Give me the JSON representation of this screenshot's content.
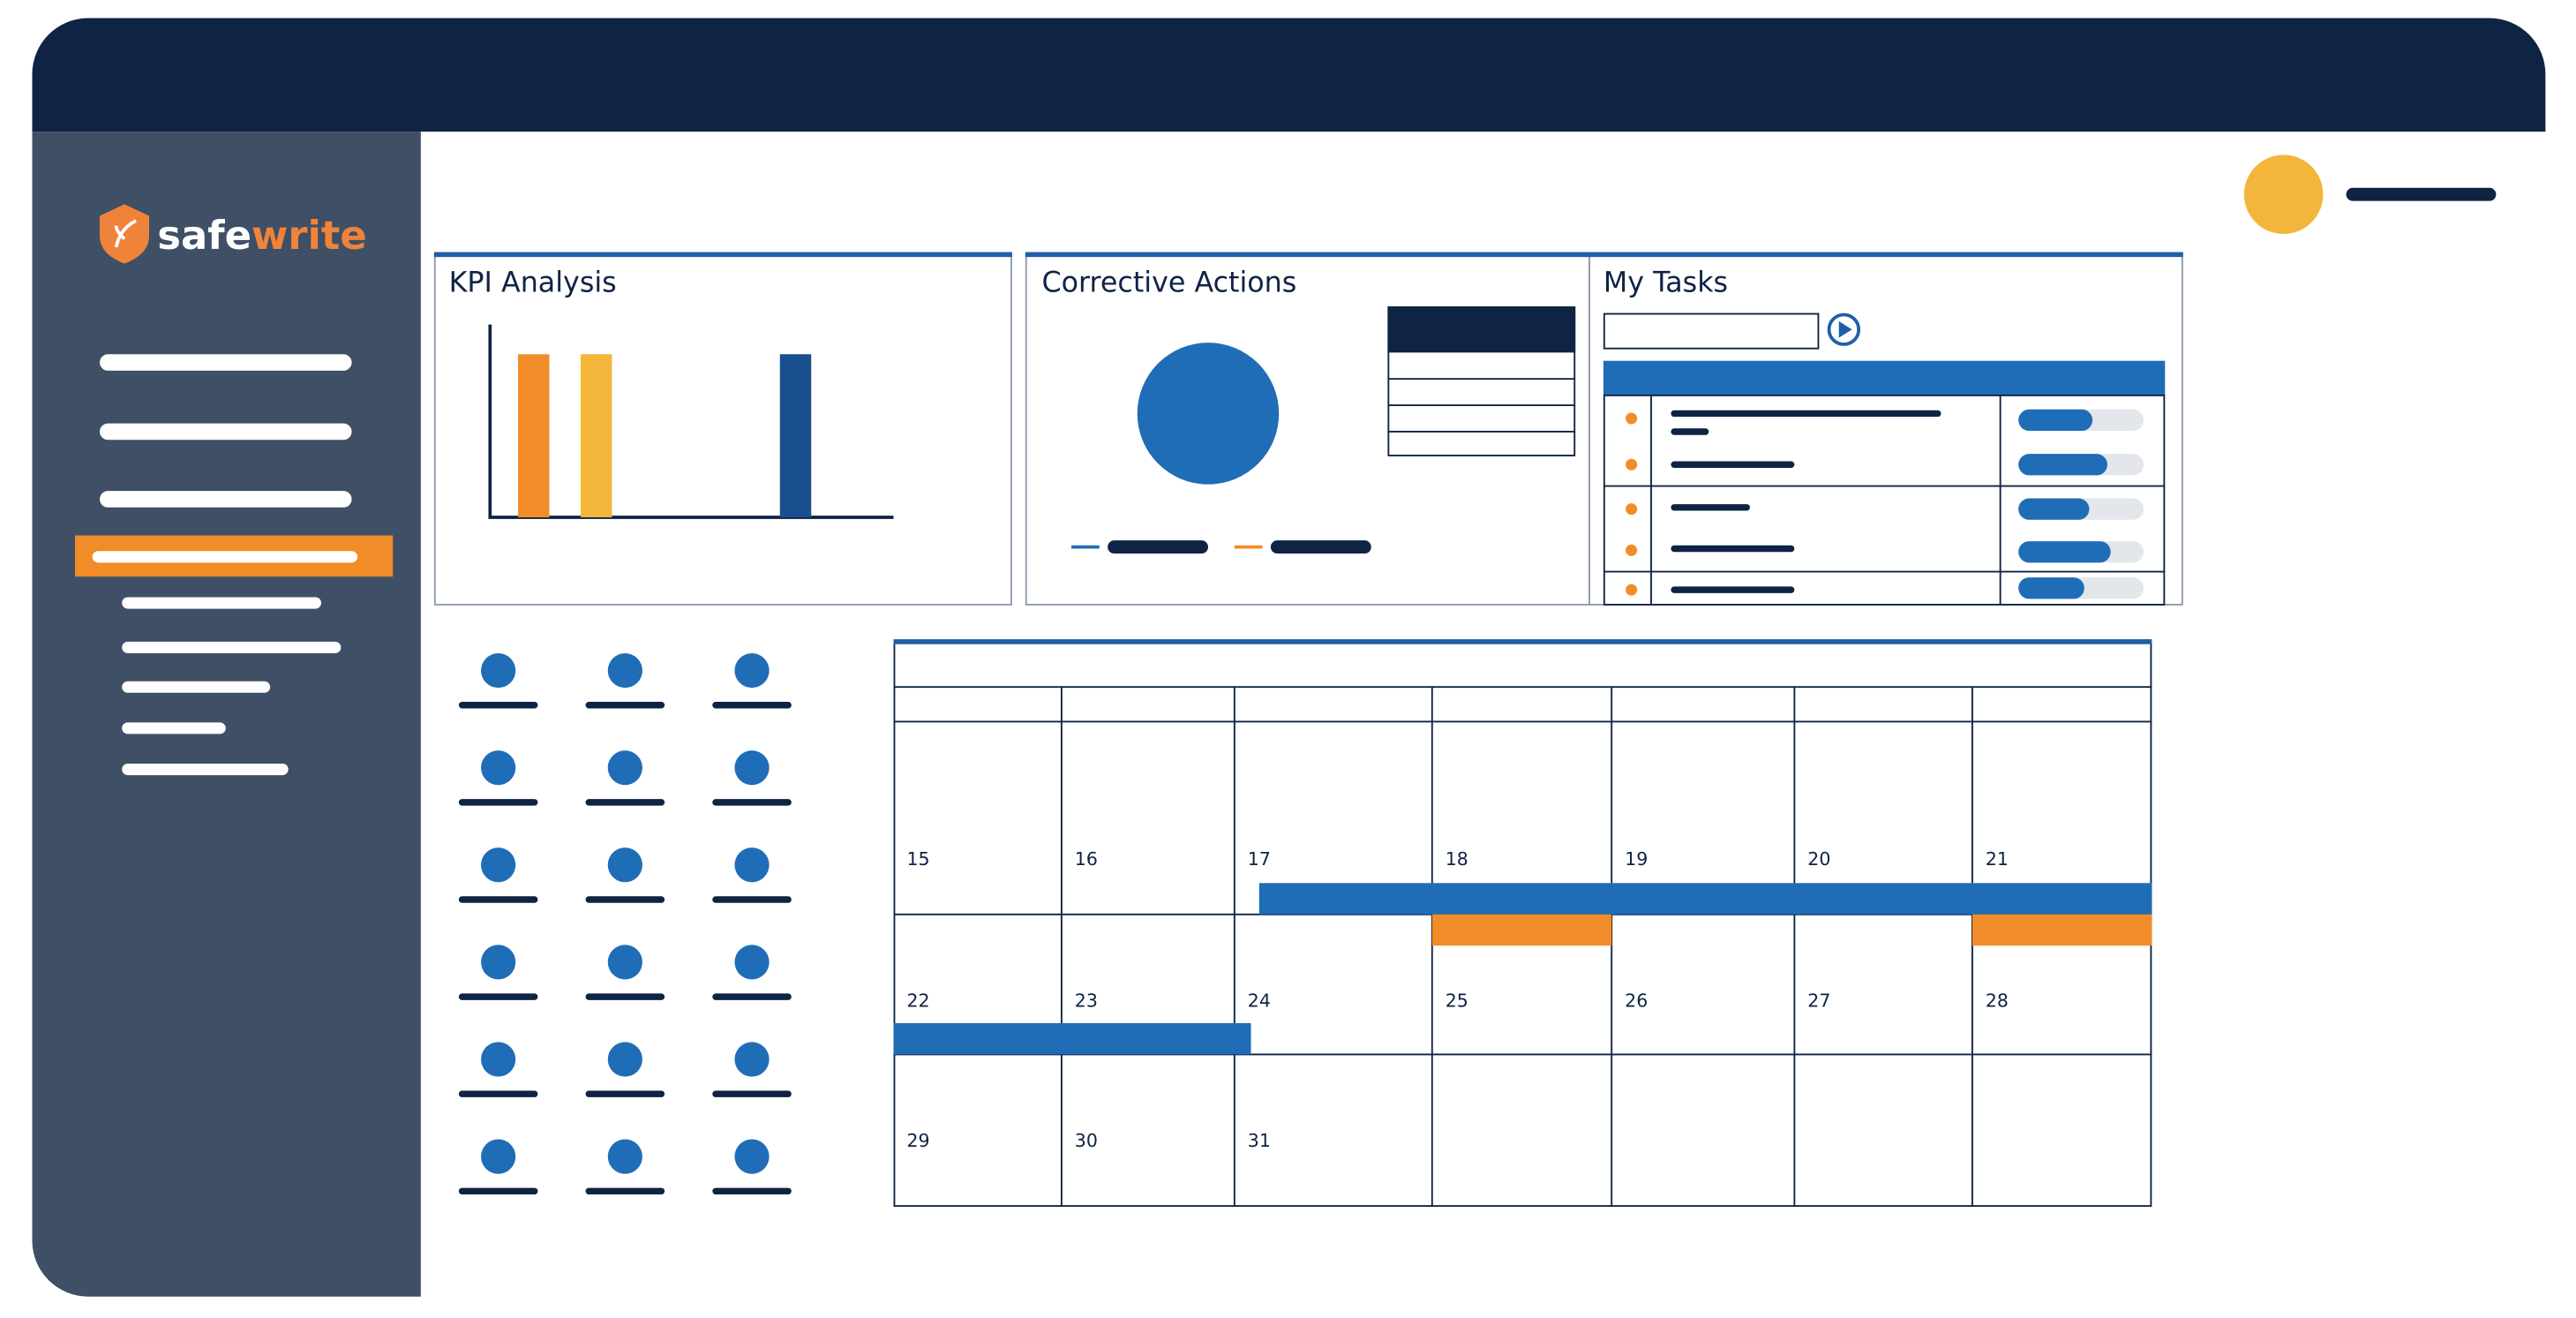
{
  "logo": {
    "part1": "safe",
    "part2": "write"
  },
  "panels": {
    "kpi": {
      "title": "KPI Analysis"
    },
    "corrective": {
      "title": "Corrective Actions"
    },
    "tasks": {
      "title": "My Tasks"
    }
  },
  "calendar": {
    "weeks": [
      [
        15,
        16,
        17,
        18,
        19,
        20,
        21
      ],
      [
        22,
        23,
        24,
        25,
        26,
        27,
        28
      ],
      [
        29,
        30,
        31
      ]
    ]
  }
}
